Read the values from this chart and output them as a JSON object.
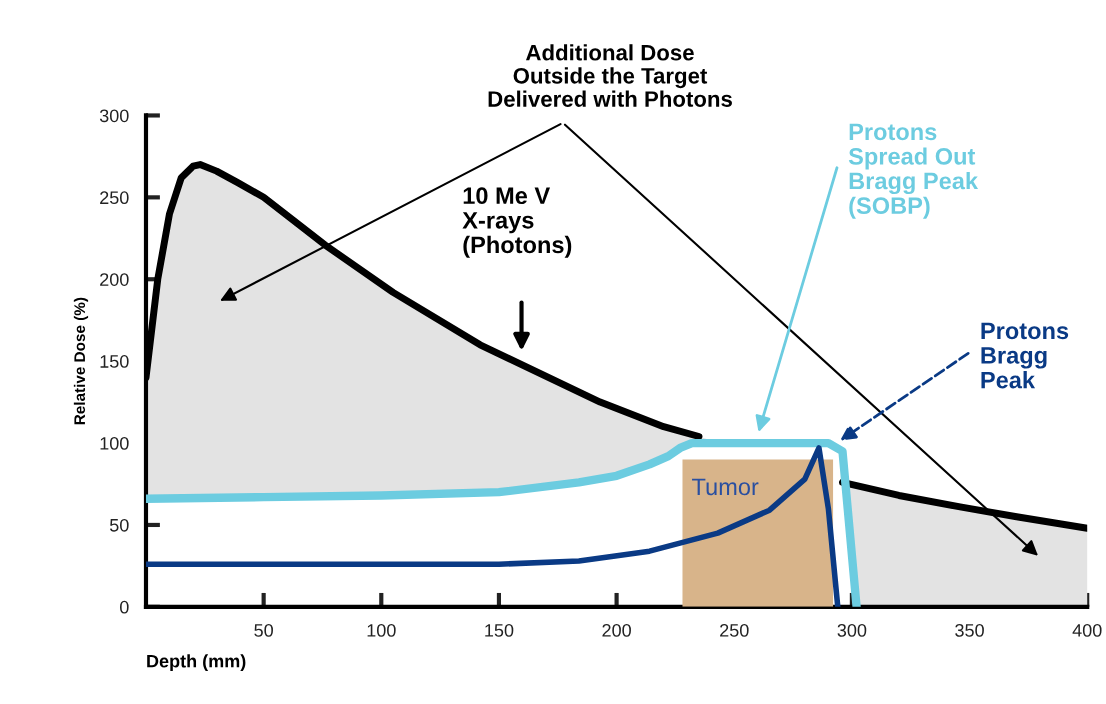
{
  "chart_data": {
    "type": "line",
    "xlabel": "Depth (mm)",
    "ylabel": "Relative Dose (%)",
    "xlim": [
      0,
      400
    ],
    "ylim": [
      0,
      300
    ],
    "xticks": [
      50,
      100,
      150,
      200,
      250,
      300,
      350,
      400
    ],
    "yticks": [
      0,
      50,
      100,
      150,
      200,
      250,
      300
    ],
    "grid": false,
    "legend": false,
    "series": [
      {
        "type": "area",
        "color": "#000000",
        "x": [
          0,
          5,
          10,
          15,
          20,
          23,
          30,
          39,
          50,
          76,
          105,
          142,
          193,
          220,
          235,
          250,
          270,
          296,
          320,
          346,
          370,
          400
        ],
        "values": [
          140,
          200,
          240,
          262,
          269,
          270,
          266,
          259,
          250,
          221,
          192,
          160,
          125,
          110,
          104,
          null,
          null,
          76,
          68,
          61,
          55,
          48
        ]
      },
      {
        "color": "#6ccce0",
        "x": [
          0,
          50,
          100,
          150,
          184,
          200,
          214,
          222,
          227,
          232,
          260,
          290,
          296,
          302
        ],
        "values": [
          66,
          67,
          68,
          70,
          76,
          80,
          87,
          92,
          97,
          100,
          100,
          100,
          95,
          0
        ]
      },
      {
        "type": "area",
        "name": "Tumor",
        "color": "#d8b48a",
        "x": [
          228,
          292
        ],
        "values": [
          90,
          90
        ]
      },
      {
        "color": "#0a3a85",
        "x": [
          0,
          50,
          100,
          150,
          184,
          214,
          243,
          265,
          280,
          286,
          290,
          294
        ],
        "values": [
          26,
          26,
          26,
          26,
          28,
          34,
          45,
          59,
          78,
          97,
          60,
          0
        ]
      }
    ],
    "annotations": [
      "Additional Dose\nOutside the Target\nDelivered with Photons",
      "10 Me V\nX-rays\n(Photons)",
      "Protons\nSpread Out\nBragg Peak\n(SOBP)",
      "Protons\nBragg\nPeak"
    ]
  }
}
